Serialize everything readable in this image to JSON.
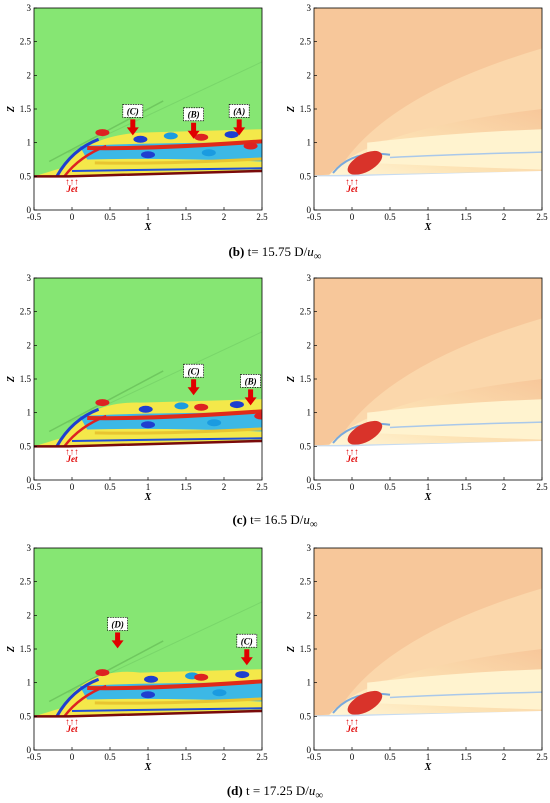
{
  "axes": {
    "xlabel": "X",
    "ylabel": "Z",
    "xticks": [
      "-0.5",
      "0",
      "0.5",
      "1",
      "1.5",
      "2",
      "2.5"
    ],
    "yticks": [
      "0",
      "0.5",
      "1",
      "1.5",
      "2",
      "2.5",
      "3"
    ],
    "xlim": [
      -0.5,
      2.5
    ],
    "ylim": [
      0,
      3
    ]
  },
  "jet_label": "Jet",
  "jet_arrows": "↑↑↑",
  "panels": [
    {
      "caption_letter": "(b)",
      "caption_text": " t= 15.75 D/",
      "caption_unit": "u",
      "caption_sub": "∞",
      "annotations": [
        {
          "label": "(C)",
          "x": 0.8,
          "z": 1.45
        },
        {
          "label": "(B)",
          "x": 1.6,
          "z": 1.4
        },
        {
          "label": "(A)",
          "x": 2.2,
          "z": 1.45
        }
      ]
    },
    {
      "caption_letter": "(c)",
      "caption_text": " t= 16.5 D/",
      "caption_unit": "u",
      "caption_sub": "∞",
      "annotations": [
        {
          "label": "(C)",
          "x": 1.6,
          "z": 1.6
        },
        {
          "label": "(B)",
          "x": 2.35,
          "z": 1.45
        }
      ]
    },
    {
      "caption_letter": "(d)",
      "caption_text": " t = 17.25 D/",
      "caption_unit": "u",
      "caption_sub": "∞",
      "annotations": [
        {
          "label": "(D)",
          "x": 0.6,
          "z": 1.85
        },
        {
          "label": "(C)",
          "x": 2.3,
          "z": 1.6
        }
      ]
    }
  ],
  "colors": {
    "background_green": "#86e673",
    "accent_red": "#e00000",
    "temp_bg": "#f7c79a"
  }
}
